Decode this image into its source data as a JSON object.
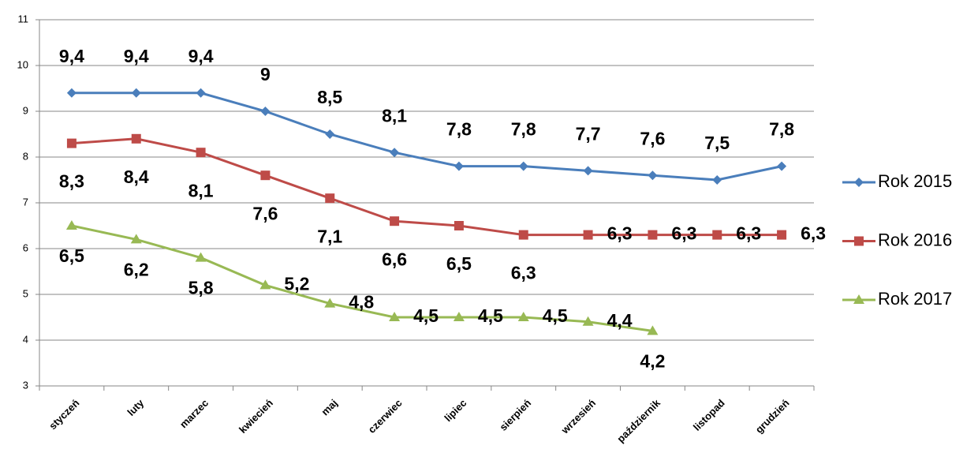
{
  "chart_data": {
    "type": "line",
    "categories": [
      "styczeń",
      "luty",
      "marzec",
      "kwiecień",
      "maj",
      "czerwiec",
      "lipiec",
      "sierpień",
      "wrzesień",
      "październik",
      "listopad",
      "grudzień"
    ],
    "series": [
      {
        "name": "Rok 2015",
        "color": "#4a7ebb",
        "marker": "diamond",
        "values": [
          9.4,
          9.4,
          9.4,
          9,
          8.5,
          8.1,
          7.8,
          7.8,
          7.7,
          7.6,
          7.5,
          7.8
        ],
        "value_labels": [
          "9,4",
          "9,4",
          "9,4",
          "9",
          "8,5",
          "8,1",
          "7,8",
          "7,8",
          "7,7",
          "7,6",
          "7,5",
          "7,8"
        ]
      },
      {
        "name": "Rok 2016",
        "color": "#be4b48",
        "marker": "square",
        "values": [
          8.3,
          8.4,
          8.1,
          7.6,
          7.1,
          6.6,
          6.5,
          6.3,
          6.3,
          6.3,
          6.3,
          6.3
        ],
        "value_labels": [
          "8,3",
          "8,4",
          "8,1",
          "7,6",
          "7,1",
          "6,6",
          "6,5",
          "6,3",
          "6,3",
          "6,3",
          "6,3",
          "6,3"
        ]
      },
      {
        "name": "Rok 2017",
        "color": "#98b954",
        "marker": "triangle",
        "values": [
          6.5,
          6.2,
          5.8,
          5.2,
          4.8,
          4.5,
          4.5,
          4.5,
          4.4,
          4.2,
          null,
          null
        ],
        "value_labels": [
          "6,5",
          "6,2",
          "5,8",
          "5,2",
          "4,8",
          "4,5",
          "4,5",
          "4,5",
          "4,4",
          "4,2",
          null,
          null
        ]
      }
    ],
    "ylim": [
      3,
      11
    ],
    "yticks": [
      3,
      4,
      5,
      6,
      7,
      8,
      9,
      10,
      11
    ],
    "grid": true,
    "legend": "right"
  }
}
